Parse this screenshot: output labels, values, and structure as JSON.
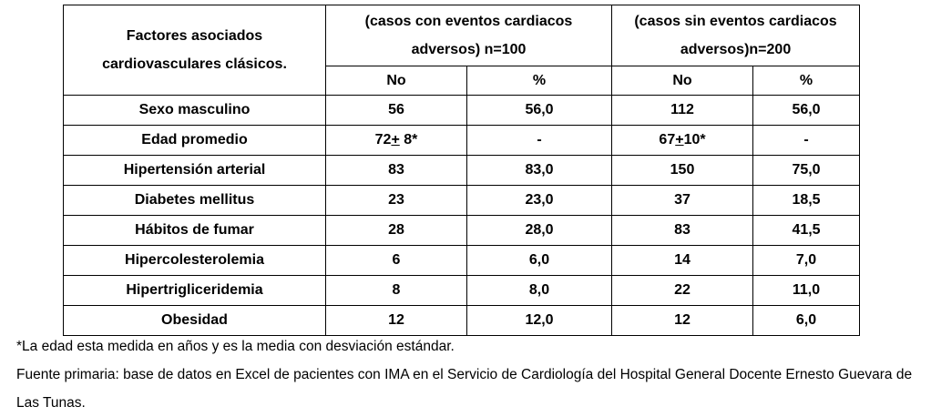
{
  "table": {
    "factor_header": "Factores asociados cardiovasculares clásicos.",
    "group_with_events": "(casos con eventos cardiacos adversos) n=100",
    "group_without_events": "(casos sin eventos cardiacos adversos)n=200",
    "sub_headers": [
      "No",
      "%",
      "No",
      "%"
    ],
    "rows": [
      {
        "factor": "Sexo masculino",
        "with_no": "56",
        "with_pct": "56,0",
        "without_no": "112",
        "without_pct": "56,0"
      },
      {
        "factor": "Edad promedio",
        "with_no": "72+ 8*",
        "with_pct": "-",
        "without_no": "67+10*",
        "without_pct": "-"
      },
      {
        "factor": "Hipertensión arterial",
        "with_no": "83",
        "with_pct": "83,0",
        "without_no": "150",
        "without_pct": "75,0"
      },
      {
        "factor": "Diabetes mellitus",
        "with_no": "23",
        "with_pct": "23,0",
        "without_no": "37",
        "without_pct": "18,5"
      },
      {
        "factor": "Hábitos de fumar",
        "with_no": "28",
        "with_pct": "28,0",
        "without_no": "83",
        "without_pct": "41,5"
      },
      {
        "factor": "Hipercolesterolemia",
        "with_no": "6",
        "with_pct": "6,0",
        "without_no": "14",
        "without_pct": "7,0"
      },
      {
        "factor": "Hipertrigliceridemia",
        "with_no": "8",
        "with_pct": "8,0",
        "without_no": "22",
        "without_pct": "11,0"
      },
      {
        "factor": "Obesidad",
        "with_no": "12",
        "with_pct": "12,0",
        "without_no": "12",
        "without_pct": "6,0"
      }
    ]
  },
  "notes": {
    "age_note": "*La edad esta medida en años y es la media con desviación estándar.",
    "source_note": "Fuente primaria: base de datos en Excel de pacientes con IMA en el Servicio de Cardiología del Hospital General Docente Ernesto Guevara de Las Tunas."
  }
}
